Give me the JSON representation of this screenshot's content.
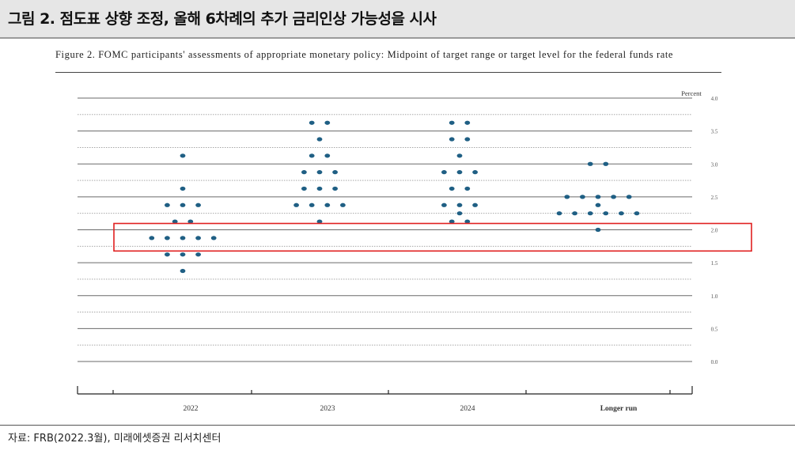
{
  "header": {
    "title": "그림 2. 점도표 상향 조정, 올해 6차례의 추가 금리인상 가능성을 시사"
  },
  "figure": {
    "caption": "Figure 2.  FOMC participants' assessments of appropriate monetary policy:  Midpoint of target range or target level for the federal funds rate"
  },
  "footer": {
    "source": "자료: FRB(2022.3월), 미래에셋증권 리서치센터"
  },
  "colors": {
    "dot": "#1f5f84",
    "highlight": "#e02020"
  },
  "chart_data": {
    "type": "scatter",
    "unit_label": "Percent",
    "categories": [
      "2022",
      "2023",
      "2024",
      "Longer run"
    ],
    "ylim": [
      0.0,
      4.0
    ],
    "y_ticks": [
      "0.0",
      "0.5",
      "1.0",
      "1.5",
      "2.0",
      "2.5",
      "3.0",
      "3.5",
      "4.0"
    ],
    "highlight_range": [
      1.75,
      2.0
    ],
    "dots": [
      {
        "category": "2022",
        "levels": [
          {
            "rate": 3.125,
            "count": 1
          },
          {
            "rate": 2.625,
            "count": 1
          },
          {
            "rate": 2.375,
            "count": 3
          },
          {
            "rate": 2.125,
            "count": 2
          },
          {
            "rate": 1.875,
            "count": 5
          },
          {
            "rate": 1.625,
            "count": 3
          },
          {
            "rate": 1.375,
            "count": 1
          }
        ]
      },
      {
        "category": "2023",
        "levels": [
          {
            "rate": 3.625,
            "count": 2
          },
          {
            "rate": 3.375,
            "count": 1
          },
          {
            "rate": 3.125,
            "count": 2
          },
          {
            "rate": 2.875,
            "count": 3
          },
          {
            "rate": 2.625,
            "count": 3
          },
          {
            "rate": 2.375,
            "count": 4
          },
          {
            "rate": 2.125,
            "count": 1
          }
        ]
      },
      {
        "category": "2024",
        "levels": [
          {
            "rate": 3.625,
            "count": 2
          },
          {
            "rate": 3.375,
            "count": 2
          },
          {
            "rate": 3.125,
            "count": 1
          },
          {
            "rate": 2.875,
            "count": 3
          },
          {
            "rate": 2.625,
            "count": 2
          },
          {
            "rate": 2.375,
            "count": 3
          },
          {
            "rate": 2.25,
            "count": 1
          },
          {
            "rate": 2.125,
            "count": 2
          }
        ]
      },
      {
        "category": "Longer run",
        "levels": [
          {
            "rate": 3.0,
            "count": 2
          },
          {
            "rate": 2.5,
            "count": 5
          },
          {
            "rate": 2.375,
            "count": 1
          },
          {
            "rate": 2.25,
            "count": 6
          },
          {
            "rate": 2.0,
            "count": 1
          }
        ]
      }
    ]
  }
}
